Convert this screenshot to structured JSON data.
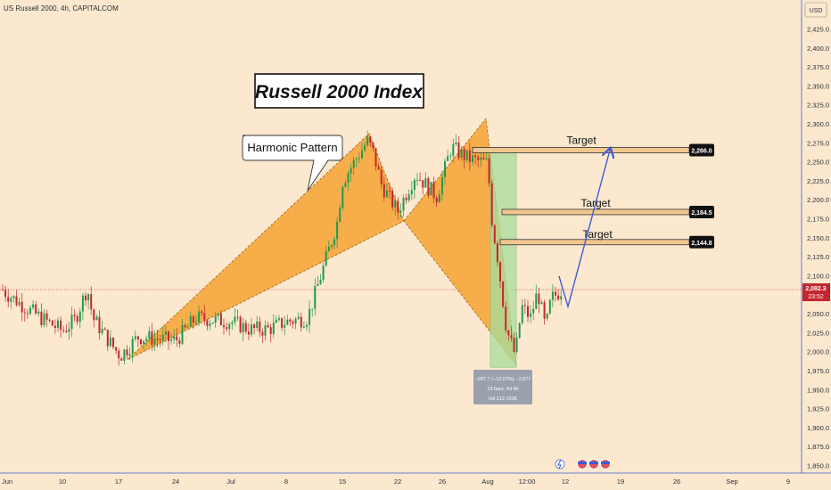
{
  "symbol_label": "US Russell 2000, 4h, CAPITALCOM",
  "currency": "USD",
  "title": "Russell 2000 Index",
  "callout": "Harmonic Pattern",
  "targets": [
    {
      "label": "Target",
      "value": "2,266.0"
    },
    {
      "label": "Target",
      "value": "2,184.5"
    },
    {
      "label": "Target",
      "value": "2,144.8"
    }
  ],
  "last_price": {
    "value": "2,082.3",
    "countdown": "23:52"
  },
  "measure": {
    "line1": "−287.7 (−12.67%) −2,877",
    "line2": "13 bars, 4d 4h",
    "line3": "Vol 212.103K"
  },
  "colors": {
    "background": "#fbe8cf",
    "pattern": "#f7a234",
    "up": "#1f9a4c",
    "down": "#c4262e",
    "projection": "#3f5bd6",
    "measure_box": "#a8de9c",
    "target_bar": "#f0c78f"
  },
  "chart_data": {
    "type": "candlestick",
    "title": "Russell 2000 Index",
    "ylim": [
      1840,
      2450
    ],
    "y_ticks": [
      "2,425.0",
      "2,400.0",
      "2,375.0",
      "2,350.0",
      "2,325.0",
      "2,300.0",
      "2,275.0",
      "2,250.0",
      "2,225.0",
      "2,200.0",
      "2,175.0",
      "2,150.0",
      "2,125.0",
      "2,100.0",
      "2,075.0",
      "2,050.0",
      "2,025.0",
      "2,000.0",
      "1,975.0",
      "1,950.0",
      "1,925.0",
      "1,900.0",
      "1,875.0",
      "1,850.0"
    ],
    "x_ticks": [
      "Jun",
      "10",
      "17",
      "24",
      "Jul",
      "8",
      "15",
      "22",
      "26",
      "Aug",
      "12:00",
      "12",
      "19",
      "26",
      "Sep",
      "9"
    ],
    "close_path": [
      {
        "d": "Jun 1",
        "y": 2080
      },
      {
        "d": "Jun 4",
        "y": 2062
      },
      {
        "d": "Jun 7",
        "y": 2045
      },
      {
        "d": "Jun 10",
        "y": 2028
      },
      {
        "d": "Jun 12",
        "y": 2042
      },
      {
        "d": "Jun 14",
        "y": 2085
      },
      {
        "d": "Jun 15",
        "y": 2045
      },
      {
        "d": "Jun 17",
        "y": 2005
      },
      {
        "d": "Jun 18",
        "y": 1995
      },
      {
        "d": "Jun 21",
        "y": 2020
      },
      {
        "d": "Jun 24",
        "y": 2015
      },
      {
        "d": "Jun 27",
        "y": 2045
      },
      {
        "d": "Jul 1",
        "y": 2040
      },
      {
        "d": "Jul 4",
        "y": 2030
      },
      {
        "d": "Jul 7",
        "y": 2030
      },
      {
        "d": "Jul 9",
        "y": 2040
      },
      {
        "d": "Jul 10",
        "y": 2045
      },
      {
        "d": "Jul 11",
        "y": 2120
      },
      {
        "d": "Jul 13",
        "y": 2170
      },
      {
        "d": "Jul 15",
        "y": 2225
      },
      {
        "d": "Jul 17",
        "y": 2278
      },
      {
        "d": "Jul 18",
        "y": 2265
      },
      {
        "d": "Jul 20",
        "y": 2220
      },
      {
        "d": "Jul 22",
        "y": 2185
      },
      {
        "d": "Jul 24",
        "y": 2235
      },
      {
        "d": "Jul 26",
        "y": 2205
      },
      {
        "d": "Jul 28",
        "y": 2270
      },
      {
        "d": "Jul 30",
        "y": 2255
      },
      {
        "d": "Aug 1",
        "y": 2248
      },
      {
        "d": "Aug 2",
        "y": 2170
      },
      {
        "d": "Aug 3",
        "y": 2125
      },
      {
        "d": "Aug 5",
        "y": 2030
      },
      {
        "d": "Aug 6",
        "y": 1995
      },
      {
        "d": "Aug 7",
        "y": 2060
      },
      {
        "d": "Aug 8",
        "y": 2045
      },
      {
        "d": "Aug 9",
        "y": 2080
      },
      {
        "d": "Aug 10",
        "y": 2030
      },
      {
        "d": "Aug 11",
        "y": 2070
      },
      {
        "d": "Aug 12",
        "y": 2082.3
      }
    ],
    "pattern_points": {
      "X": 1990,
      "A": 2290,
      "B": 2175,
      "C": 2310,
      "D": 1985
    },
    "projection": [
      2060,
      2266
    ],
    "targets": [
      2266.0,
      2184.5,
      2144.8
    ],
    "last_price": 2082.3,
    "grid": false
  }
}
